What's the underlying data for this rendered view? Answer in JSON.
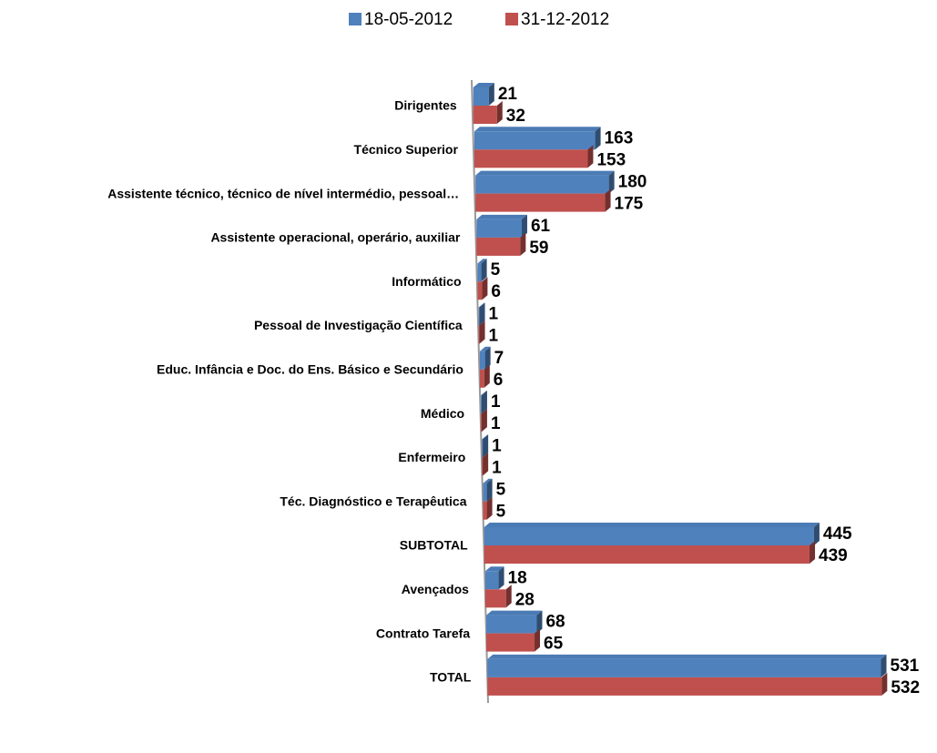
{
  "chart_data": {
    "type": "bar",
    "orientation": "horizontal",
    "legend": "top",
    "categories": [
      "Dirigentes",
      "Técnico Superior",
      "Assistente técnico, técnico de nível intermédio, pessoal…",
      "Assistente operacional, operário, auxiliar",
      "Informático",
      "Pessoal de Investigação Científica",
      "Educ. Infância e Doc. do Ens. Básico e Secundário",
      "Médico",
      "Enfermeiro",
      "Téc. Diagnóstico e Terapêutica",
      "SUBTOTAL",
      "Avençados",
      "Contrato Tarefa",
      "TOTAL"
    ],
    "series": [
      {
        "name": "18-05-2012",
        "color": "#4f81bd",
        "values": [
          21,
          163,
          180,
          61,
          5,
          1,
          7,
          1,
          1,
          5,
          445,
          18,
          68,
          531
        ]
      },
      {
        "name": "31-12-2012",
        "color": "#c0504d",
        "values": [
          32,
          153,
          175,
          59,
          6,
          1,
          6,
          1,
          1,
          5,
          439,
          28,
          65,
          532
        ]
      }
    ]
  }
}
